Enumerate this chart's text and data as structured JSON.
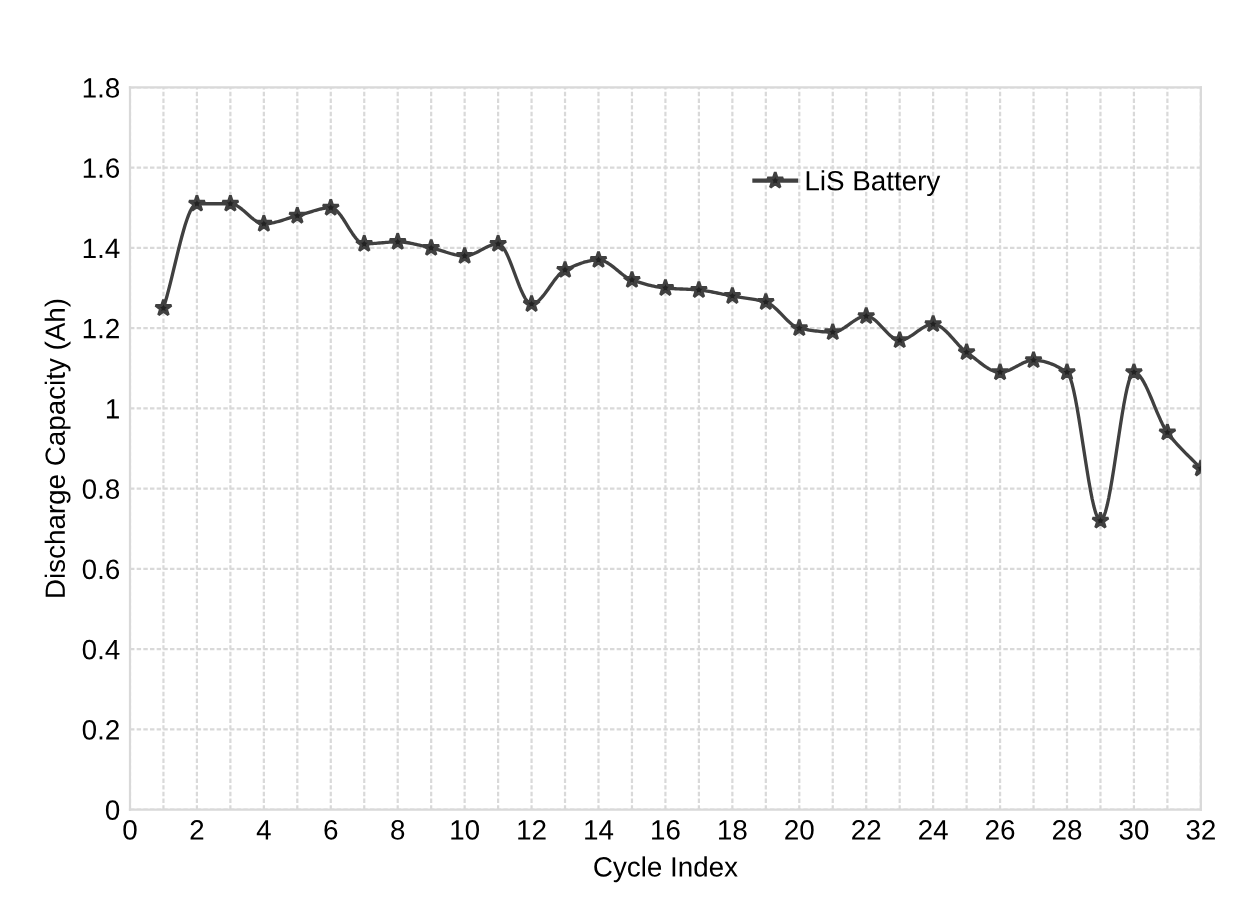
{
  "chart_data": {
    "type": "line",
    "xlabel": "Cycle Index",
    "ylabel": "Discharge Capacity (Ah)",
    "x": [
      1,
      2,
      3,
      4,
      5,
      6,
      7,
      8,
      9,
      10,
      11,
      12,
      13,
      14,
      15,
      16,
      17,
      18,
      19,
      20,
      21,
      22,
      23,
      24,
      25,
      26,
      27,
      28,
      29,
      30,
      31,
      32
    ],
    "series": [
      {
        "name": "LiS Battery",
        "color": "#404040",
        "values": [
          1.25,
          1.51,
          1.51,
          1.46,
          1.48,
          1.5,
          1.41,
          1.415,
          1.4,
          1.38,
          1.41,
          1.26,
          1.345,
          1.37,
          1.32,
          1.3,
          1.295,
          1.28,
          1.265,
          1.2,
          1.19,
          1.23,
          1.17,
          1.21,
          1.14,
          1.09,
          1.12,
          1.09,
          0.72,
          1.09,
          0.94,
          0.85
        ]
      }
    ],
    "xlim": [
      0,
      32
    ],
    "ylim": [
      0,
      1.8
    ],
    "xticks": [
      0,
      {
        "value": 1,
        "label": null
      },
      2,
      {
        "value": 3,
        "label": null
      },
      4,
      {
        "value": 5,
        "label": null
      },
      6,
      {
        "value": 7,
        "label": null
      },
      8,
      {
        "value": 9,
        "label": null
      },
      10,
      {
        "value": 11,
        "label": null
      },
      12,
      {
        "value": 13,
        "label": null
      },
      14,
      {
        "value": 15,
        "label": null
      },
      16,
      {
        "value": 17,
        "label": null
      },
      18,
      {
        "value": 19,
        "label": null
      },
      20,
      {
        "value": 21,
        "label": null
      },
      22,
      {
        "value": 23,
        "label": null
      },
      24,
      {
        "value": 25,
        "label": null
      },
      26,
      {
        "value": 27,
        "label": null
      },
      28,
      {
        "value": 29,
        "label": null
      },
      30,
      {
        "value": 31,
        "label": null
      },
      32
    ],
    "yticks": [
      0,
      0.2,
      0.4,
      0.6,
      0.8,
      1,
      1.2,
      1.4,
      1.6,
      1.8
    ],
    "grid": true,
    "legend": "top right",
    "marker": "star",
    "line_style": "solid"
  }
}
